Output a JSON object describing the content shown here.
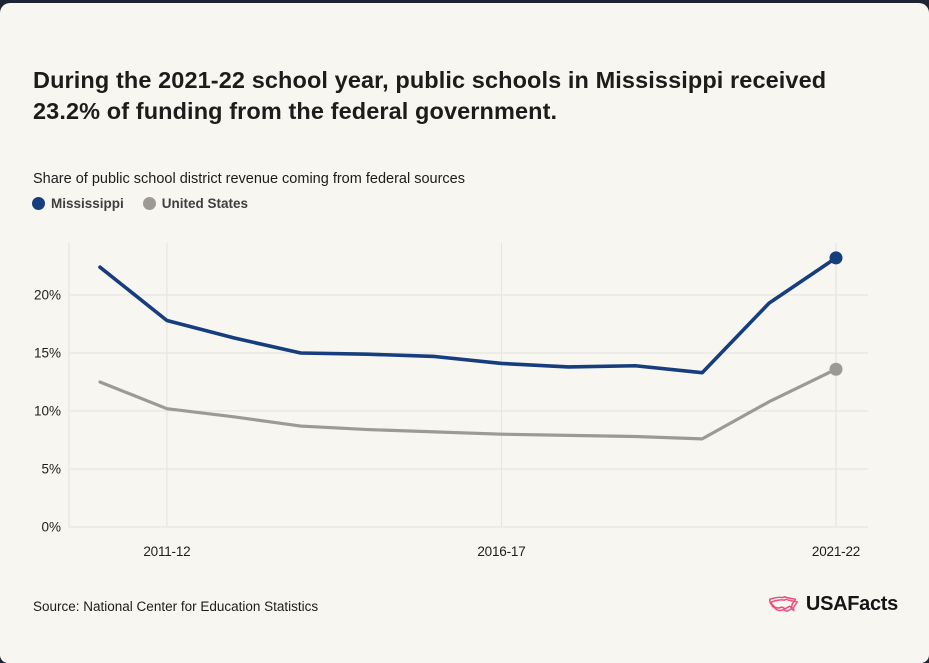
{
  "page": {
    "background": "#f7f6f1",
    "frame_color": "#1e2433"
  },
  "header": {
    "title": "During the 2021-22 school year, public schools in Mississippi received 23.2% of funding from the federal government.",
    "subtitle": "Share of public school district revenue coming from federal sources"
  },
  "chart_data": {
    "type": "line",
    "title": "Share of public school district revenue coming from federal sources",
    "x": [
      "2010-11",
      "2011-12",
      "2012-13",
      "2013-14",
      "2014-15",
      "2015-16",
      "2016-17",
      "2017-18",
      "2018-19",
      "2019-20",
      "2020-21",
      "2021-22"
    ],
    "x_tick_labels": [
      "2011-12",
      "2016-17",
      "2021-22"
    ],
    "series": [
      {
        "name": "Mississippi",
        "color": "#163d7d",
        "values": [
          22.4,
          17.8,
          16.3,
          15.0,
          14.9,
          14.7,
          14.1,
          13.8,
          13.9,
          13.3,
          19.3,
          23.2
        ]
      },
      {
        "name": "United States",
        "color": "#9d9a95",
        "values": [
          12.5,
          10.2,
          9.5,
          8.7,
          8.4,
          8.2,
          8.0,
          7.9,
          7.8,
          7.6,
          10.8,
          13.6
        ]
      }
    ],
    "yticks": [
      0,
      5,
      10,
      15,
      20
    ],
    "ytick_suffix": "%",
    "ylim": [
      0,
      24.5
    ],
    "grid": true,
    "legend_position": "top-left",
    "end_point_markers": true,
    "gridline_color": "#e5e3de",
    "axis_label_color": "#1e1e1e"
  },
  "footer": {
    "source": "Source: National Center for Education Statistics",
    "logo_text": "USAFacts",
    "logo_accent_color": "#ed4677"
  }
}
